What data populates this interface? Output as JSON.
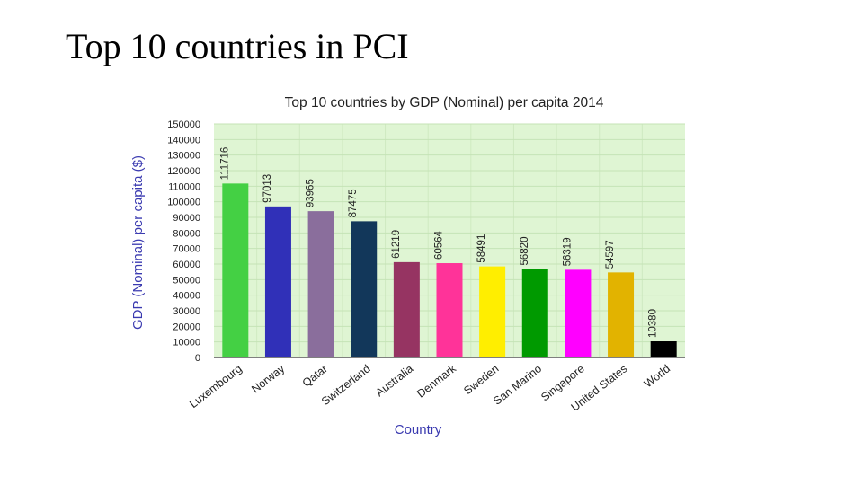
{
  "slide": {
    "title": "Top 10 countries in PCI"
  },
  "chart_data": {
    "type": "bar",
    "title": "Top 10 countries by GDP (Nominal) per capita 2014",
    "xlabel": "Country",
    "ylabel": "GDP (Nominal) per capita ($)",
    "ylim": [
      0,
      150000
    ],
    "yticks": [
      0,
      10000,
      20000,
      30000,
      40000,
      50000,
      60000,
      70000,
      80000,
      90000,
      100000,
      110000,
      120000,
      130000,
      140000,
      150000
    ],
    "grid": true,
    "plot_background": "#dff5d3",
    "grid_color": "#c5e3b6",
    "categories": [
      "Luxembourg",
      "Norway",
      "Qatar",
      "Switzerland",
      "Australia",
      "Denmark",
      "Sweden",
      "San Marino",
      "Singapore",
      "United States",
      "World"
    ],
    "values": [
      111716,
      97013,
      93965,
      87475,
      61219,
      60564,
      58491,
      56820,
      56319,
      54597,
      10380
    ],
    "colors": [
      "#44d044",
      "#3030b8",
      "#8a6e9c",
      "#12375a",
      "#963462",
      "#ff3399",
      "#ffee00",
      "#009a00",
      "#ff00ff",
      "#e2b300",
      "#000000"
    ]
  }
}
